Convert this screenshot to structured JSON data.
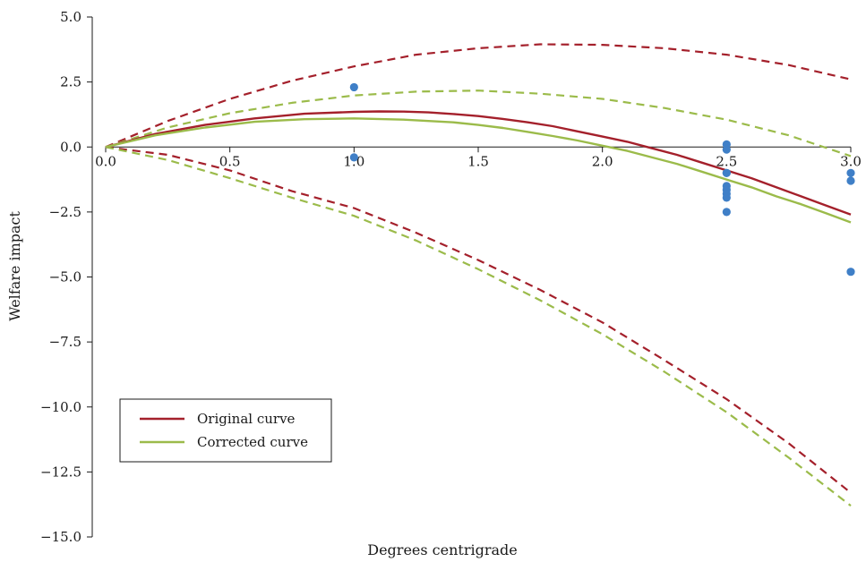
{
  "chart_data": {
    "type": "line",
    "title": "",
    "xlabel": "Degrees centrigrade",
    "ylabel": "Welfare impact",
    "xlim": [
      0,
      3.0
    ],
    "ylim": [
      -15.0,
      5.0
    ],
    "xticks": [
      "0.0",
      "0.5",
      "1.0",
      "1.5",
      "2.0",
      "2.5",
      "3.0"
    ],
    "xtick_values": [
      0,
      0.5,
      1.0,
      1.5,
      2.0,
      2.5,
      3.0
    ],
    "yticks": [
      "5.0",
      "2.5",
      "0.0",
      "−2.5",
      "−5.0",
      "−7.5",
      "−10.0",
      "−12.5",
      "−15.0"
    ],
    "ytick_values": [
      5.0,
      2.5,
      0.0,
      -2.5,
      -5.0,
      -7.5,
      -10.0,
      -12.5,
      -15.0
    ],
    "grid": false,
    "legend": {
      "position": "lower-left",
      "entries": [
        "Original curve",
        "Corrected curve"
      ]
    },
    "series": [
      {
        "name": "Original curve",
        "color": "#a4202b",
        "style": "solid",
        "x": [
          0,
          0.2,
          0.4,
          0.6,
          0.8,
          1.0,
          1.1,
          1.2,
          1.3,
          1.4,
          1.5,
          1.6,
          1.7,
          1.8,
          1.9,
          2.0,
          2.1,
          2.2,
          2.3,
          2.4,
          2.5,
          2.6,
          2.7,
          2.8,
          2.9,
          3.0
        ],
        "y": [
          0,
          0.5,
          0.85,
          1.1,
          1.28,
          1.35,
          1.37,
          1.36,
          1.33,
          1.27,
          1.19,
          1.08,
          0.95,
          0.8,
          0.6,
          0.4,
          0.2,
          -0.05,
          -0.3,
          -0.6,
          -0.9,
          -1.2,
          -1.55,
          -1.9,
          -2.25,
          -2.6
        ]
      },
      {
        "name": "Corrected curve",
        "color": "#9bbb4a",
        "style": "solid",
        "x": [
          0,
          0.2,
          0.4,
          0.6,
          0.8,
          1.0,
          1.2,
          1.4,
          1.5,
          1.6,
          1.7,
          1.8,
          1.9,
          2.0,
          2.1,
          2.2,
          2.3,
          2.4,
          2.5,
          2.6,
          2.7,
          2.8,
          2.9,
          3.0
        ],
        "y": [
          0,
          0.45,
          0.75,
          0.97,
          1.07,
          1.1,
          1.05,
          0.95,
          0.85,
          0.73,
          0.58,
          0.42,
          0.25,
          0.05,
          -0.15,
          -0.4,
          -0.65,
          -0.95,
          -1.25,
          -1.55,
          -1.9,
          -2.2,
          -2.55,
          -2.9
        ]
      },
      {
        "name": "",
        "color": "#a4202b",
        "style": "dashed",
        "x": [
          0,
          0.25,
          0.5,
          0.75,
          1.0,
          1.25,
          1.5,
          1.75,
          2.0,
          2.25,
          2.5,
          2.75,
          3.0
        ],
        "y": [
          0,
          1.0,
          1.85,
          2.55,
          3.1,
          3.55,
          3.8,
          3.95,
          3.93,
          3.8,
          3.55,
          3.15,
          2.6
        ]
      },
      {
        "name": "",
        "color": "#9bbb4a",
        "style": "dashed",
        "x": [
          0,
          0.25,
          0.5,
          0.75,
          1.0,
          1.25,
          1.5,
          1.75,
          2.0,
          2.25,
          2.5,
          2.75,
          3.0
        ],
        "y": [
          0,
          0.75,
          1.3,
          1.7,
          1.98,
          2.13,
          2.17,
          2.05,
          1.85,
          1.5,
          1.05,
          0.45,
          -0.35
        ]
      },
      {
        "name": "",
        "color": "#a4202b",
        "style": "dashed",
        "x": [
          0,
          0.25,
          0.5,
          0.75,
          1.0,
          1.25,
          1.5,
          1.75,
          2.0,
          2.25,
          2.5,
          2.75,
          3.0
        ],
        "y": [
          0,
          -0.3,
          -0.9,
          -1.7,
          -2.35,
          -3.3,
          -4.35,
          -5.5,
          -6.75,
          -8.2,
          -9.7,
          -11.4,
          -13.3
        ]
      },
      {
        "name": "",
        "color": "#9bbb4a",
        "style": "dashed",
        "x": [
          0,
          0.25,
          0.5,
          0.75,
          1.0,
          1.25,
          1.5,
          1.75,
          2.0,
          2.25,
          2.5,
          2.75,
          3.0
        ],
        "y": [
          0,
          -0.5,
          -1.2,
          -1.95,
          -2.65,
          -3.6,
          -4.7,
          -5.9,
          -7.2,
          -8.65,
          -10.2,
          -11.95,
          -13.8
        ]
      }
    ],
    "points": {
      "color": "#3f7fc7",
      "x": [
        1.0,
        1.0,
        2.5,
        2.5,
        2.5,
        2.5,
        2.5,
        2.5,
        2.5,
        2.5,
        2.5,
        3.0,
        3.0,
        3.0
      ],
      "y": [
        2.3,
        -0.4,
        0.1,
        -0.1,
        -1.0,
        -1.5,
        -1.65,
        -1.8,
        -1.95,
        -2.5,
        -1.0,
        -1.0,
        -1.3,
        -4.8
      ]
    }
  }
}
